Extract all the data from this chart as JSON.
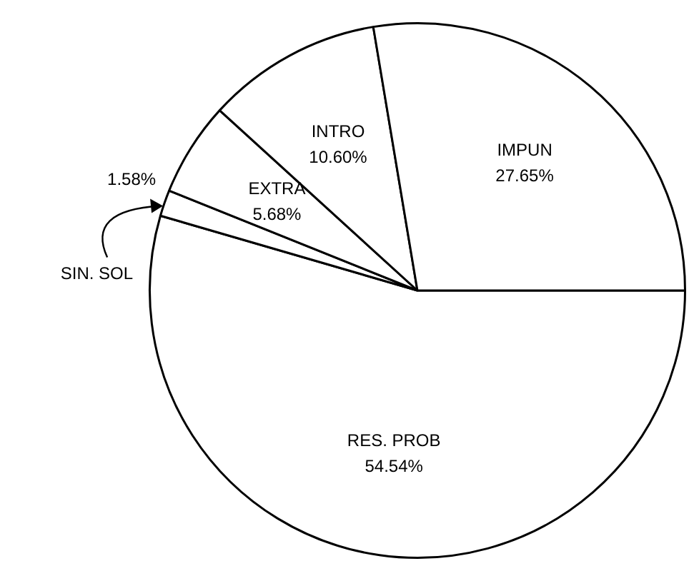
{
  "chart_data": {
    "type": "pie",
    "categories": [
      "RES. PROB",
      "SIN. SOL",
      "EXTRA",
      "INTRO",
      "IMPUN"
    ],
    "values": [
      54.54,
      1.58,
      5.68,
      10.6,
      27.65
    ],
    "colors": [
      "#ffffff",
      "#ffffff",
      "#ffffff",
      "#ffffff",
      "#ffffff"
    ],
    "value_labels": [
      "54.54%",
      "1.58%",
      "5.68%",
      "10.60%",
      "27.65%"
    ],
    "legend": false
  }
}
